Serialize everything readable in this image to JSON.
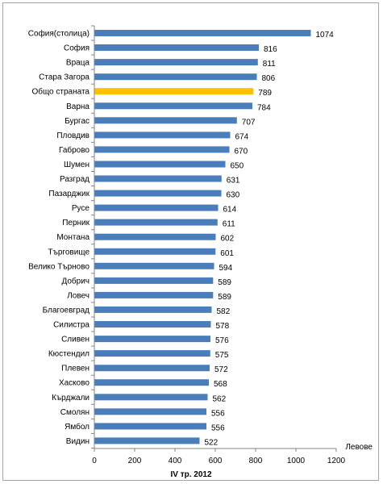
{
  "chart_data": {
    "type": "bar",
    "orientation": "horizontal",
    "categories": [
      "София(столица)",
      "София",
      "Враца",
      "Стара Загора",
      "Общо страната",
      "Варна",
      "Бургас",
      "Пловдив",
      "Габрово",
      "Шумен",
      "Разград",
      "Пазарджик",
      "Русе",
      "Перник",
      "Монтана",
      "Търговище",
      "Велико Търново",
      "Добрич",
      "Ловеч",
      "Благоевград",
      "Силистра",
      "Сливен",
      "Кюстендил",
      "Плевен",
      "Хасково",
      "Кърджали",
      "Смолян",
      "Ямбол",
      "Видин"
    ],
    "values": [
      1074,
      816,
      811,
      806,
      789,
      784,
      707,
      674,
      670,
      650,
      631,
      630,
      614,
      611,
      602,
      601,
      594,
      589,
      589,
      582,
      578,
      576,
      575,
      572,
      568,
      562,
      556,
      556,
      522
    ],
    "highlight_category": "Общо страната",
    "bar_color": "#4a7ebb",
    "highlight_color": "#ffc000",
    "xlim": [
      0,
      1200
    ],
    "xticks": [
      0,
      200,
      400,
      600,
      800,
      1000,
      1200
    ],
    "xlabel": "IV тр. 2012",
    "unit_label": "Левове",
    "grid": false,
    "legend": "none"
  }
}
